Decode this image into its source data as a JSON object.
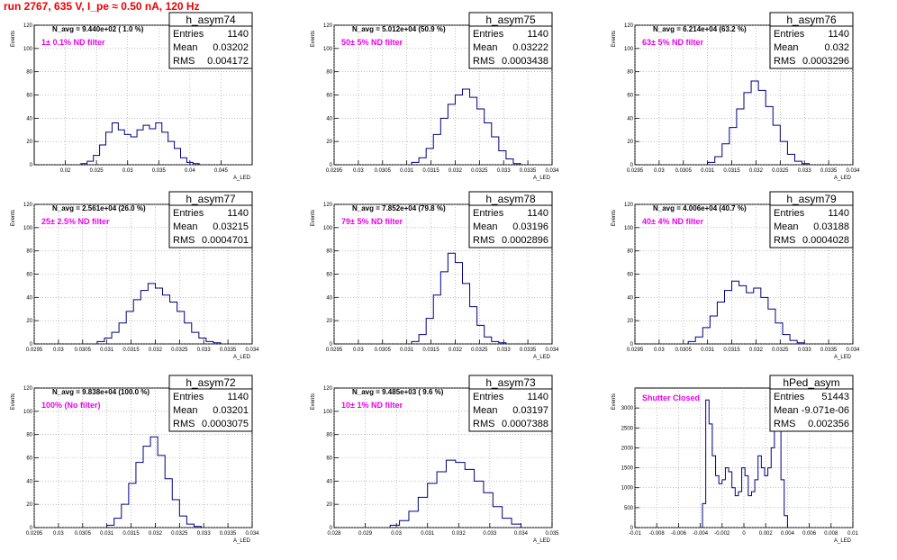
{
  "header": "run 2767,   635 V, I_pe ≈ 0.50 nA, 120 Hz",
  "ylabel": "Events",
  "xlabel": "A_LED",
  "colors": {
    "header": "#ee0000",
    "filter_text": "#ee00ee",
    "histogram_line": "#000080"
  },
  "chart_data": [
    {
      "type": "bar",
      "name": "h_asym74",
      "navg": "N_avg = 9.440e+02 ( 1.0 %)",
      "filter": "1± 0.1% ND filter",
      "stats": {
        "entries": "1140",
        "mean": "0.03202",
        "rms": "0.004172"
      },
      "xlim": [
        0.015,
        0.05
      ],
      "ylim": [
        0,
        120
      ],
      "xticks": [
        "0.02",
        "0.025",
        "0.03",
        "0.035",
        "0.04",
        "0.045"
      ],
      "xtick_values": [
        0.02,
        0.025,
        0.03,
        0.035,
        0.04,
        0.045
      ],
      "yticks": [
        "0",
        "20",
        "40",
        "60",
        "80",
        "100",
        "120"
      ],
      "yticks_values": [
        0,
        20,
        40,
        60,
        80,
        100,
        120
      ],
      "bin_edges": [
        0.0225,
        0.0235,
        0.0245,
        0.0255,
        0.0265,
        0.0275,
        0.0285,
        0.0295,
        0.0305,
        0.0315,
        0.0325,
        0.0335,
        0.0345,
        0.0355,
        0.0365,
        0.0375,
        0.0385,
        0.0395,
        0.0405,
        0.0415
      ],
      "values": [
        1,
        3,
        8,
        17,
        28,
        36,
        30,
        26,
        24,
        30,
        34,
        31,
        36,
        28,
        20,
        14,
        6,
        2,
        1
      ]
    },
    {
      "type": "bar",
      "name": "h_asym75",
      "navg": "N_avg = 5.012e+04 (50.9 %)",
      "filter": "50± 5% ND filter",
      "stats": {
        "entries": "1140",
        "mean": "0.03222",
        "rms": "0.0003438"
      },
      "xlim": [
        0.0295,
        0.034
      ],
      "ylim": [
        0,
        120
      ],
      "xticks": [
        "0.0295",
        "0.03",
        "0.0305",
        "0.031",
        "0.0315",
        "0.032",
        "0.0325",
        "0.033",
        "0.0335",
        "0.034"
      ],
      "xtick_values": [
        0.0295,
        0.03,
        0.0305,
        0.031,
        0.0315,
        0.032,
        0.0325,
        0.033,
        0.0335,
        0.034
      ],
      "yticks": [
        "0",
        "20",
        "40",
        "60",
        "80",
        "100",
        "120"
      ],
      "yticks_values": [
        0,
        20,
        40,
        60,
        80,
        100,
        120
      ],
      "bin_edges": [
        0.0311,
        0.03125,
        0.0314,
        0.03155,
        0.0317,
        0.03185,
        0.032,
        0.03215,
        0.0323,
        0.03245,
        0.0326,
        0.03275,
        0.0329,
        0.03305,
        0.0332,
        0.03335
      ],
      "values": [
        2,
        6,
        14,
        26,
        40,
        52,
        60,
        65,
        58,
        48,
        36,
        24,
        12,
        5,
        1
      ]
    },
    {
      "type": "bar",
      "name": "h_asym76",
      "navg": "N_avg = 6.214e+04 (63.2 %)",
      "filter": "63± 5% ND filter",
      "stats": {
        "entries": "1140",
        "mean": "0.032",
        "rms": "0.0003296"
      },
      "xlim": [
        0.0295,
        0.034
      ],
      "ylim": [
        0,
        120
      ],
      "xticks": [
        "0.0295",
        "0.03",
        "0.0305",
        "0.031",
        "0.0315",
        "0.032",
        "0.0325",
        "0.033",
        "0.0335",
        "0.034"
      ],
      "xtick_values": [
        0.0295,
        0.03,
        0.0305,
        0.031,
        0.0315,
        0.032,
        0.0325,
        0.033,
        0.0335,
        0.034
      ],
      "yticks": [
        "0",
        "20",
        "40",
        "60",
        "80",
        "100",
        "120"
      ],
      "yticks_values": [
        0,
        20,
        40,
        60,
        80,
        100,
        120
      ],
      "bin_edges": [
        0.031,
        0.03115,
        0.0313,
        0.03145,
        0.0316,
        0.03175,
        0.0319,
        0.03205,
        0.0322,
        0.03235,
        0.0325,
        0.03265,
        0.0328,
        0.03295,
        0.0331
      ],
      "values": [
        2,
        7,
        18,
        32,
        48,
        62,
        72,
        64,
        50,
        34,
        20,
        9,
        3,
        1
      ]
    },
    {
      "type": "bar",
      "name": "h_asym77",
      "navg": "N_avg = 2.561e+04 (26.0 %)",
      "filter": "25± 2.5% ND filter",
      "stats": {
        "entries": "1140",
        "mean": "0.03215",
        "rms": "0.0004701"
      },
      "xlim": [
        0.0295,
        0.034
      ],
      "ylim": [
        0,
        120
      ],
      "xticks": [
        "0.0295",
        "0.03",
        "0.0305",
        "0.031",
        "0.0315",
        "0.032",
        "0.0325",
        "0.033",
        "0.0335",
        "0.034"
      ],
      "xtick_values": [
        0.0295,
        0.03,
        0.0305,
        0.031,
        0.0315,
        0.032,
        0.0325,
        0.033,
        0.0335,
        0.034
      ],
      "yticks": [
        "0",
        "20",
        "40",
        "60",
        "80",
        "100",
        "120"
      ],
      "yticks_values": [
        0,
        20,
        40,
        60,
        80,
        100,
        120
      ],
      "bin_edges": [
        0.0308,
        0.03095,
        0.0311,
        0.03125,
        0.0314,
        0.03155,
        0.0317,
        0.03185,
        0.032,
        0.03215,
        0.0323,
        0.03245,
        0.0326,
        0.03275,
        0.0329,
        0.03305,
        0.0332,
        0.03335
      ],
      "values": [
        2,
        5,
        10,
        18,
        28,
        38,
        46,
        52,
        48,
        42,
        36,
        28,
        18,
        10,
        5,
        2,
        1
      ]
    },
    {
      "type": "bar",
      "name": "h_asym78",
      "navg": "N_avg = 7.852e+04 (79.8 %)",
      "filter": "79± 5% ND filter",
      "stats": {
        "entries": "1140",
        "mean": "0.03196",
        "rms": "0.0002896"
      },
      "xlim": [
        0.0295,
        0.034
      ],
      "ylim": [
        0,
        120
      ],
      "xticks": [
        "0.0295",
        "0.03",
        "0.0305",
        "0.031",
        "0.0315",
        "0.032",
        "0.0325",
        "0.033",
        "0.0335",
        "0.034"
      ],
      "xtick_values": [
        0.0295,
        0.03,
        0.0305,
        0.031,
        0.0315,
        0.032,
        0.0325,
        0.033,
        0.0335,
        0.034
      ],
      "yticks": [
        "0",
        "20",
        "40",
        "60",
        "80",
        "100",
        "120"
      ],
      "yticks_values": [
        0,
        20,
        40,
        60,
        80,
        100,
        120
      ],
      "bin_edges": [
        0.0311,
        0.03125,
        0.0314,
        0.03155,
        0.0317,
        0.03185,
        0.032,
        0.03215,
        0.0323,
        0.03245,
        0.0326,
        0.03275,
        0.0329,
        0.03305
      ],
      "values": [
        2,
        8,
        22,
        42,
        62,
        78,
        70,
        52,
        32,
        16,
        6,
        2,
        1
      ]
    },
    {
      "type": "bar",
      "name": "h_asym79",
      "navg": "N_avg = 4.006e+04 (40.7 %)",
      "filter": "40± 4% ND filter",
      "stats": {
        "entries": "1140",
        "mean": "0.03188",
        "rms": "0.0004028"
      },
      "xlim": [
        0.0295,
        0.034
      ],
      "ylim": [
        0,
        120
      ],
      "xticks": [
        "0.0295",
        "0.03",
        "0.0305",
        "0.031",
        "0.0315",
        "0.032",
        "0.0325",
        "0.033",
        "0.0335",
        "0.034"
      ],
      "xtick_values": [
        0.0295,
        0.03,
        0.0305,
        0.031,
        0.0315,
        0.032,
        0.0325,
        0.033,
        0.0335,
        0.034
      ],
      "yticks": [
        "0",
        "20",
        "40",
        "60",
        "80",
        "100",
        "120"
      ],
      "yticks_values": [
        0,
        20,
        40,
        60,
        80,
        100,
        120
      ],
      "bin_edges": [
        0.0306,
        0.03075,
        0.0309,
        0.03105,
        0.0312,
        0.03135,
        0.0315,
        0.03165,
        0.0318,
        0.03195,
        0.0321,
        0.03225,
        0.0324,
        0.03255,
        0.0327,
        0.03285,
        0.033
      ],
      "values": [
        2,
        6,
        14,
        24,
        36,
        46,
        54,
        50,
        44,
        48,
        40,
        30,
        18,
        8,
        3,
        1
      ]
    },
    {
      "type": "bar",
      "name": "h_asym72",
      "navg": "N_avg = 9.838e+04 (100.0 %)",
      "filter": "100% (No filter)",
      "stats": {
        "entries": "1140",
        "mean": "0.03201",
        "rms": "0.0003075"
      },
      "xlim": [
        0.0295,
        0.034
      ],
      "ylim": [
        0,
        120
      ],
      "xticks": [
        "0.0295",
        "0.03",
        "0.0305",
        "0.031",
        "0.0315",
        "0.032",
        "0.0325",
        "0.033",
        "0.0335",
        "0.034"
      ],
      "xtick_values": [
        0.0295,
        0.03,
        0.0305,
        0.031,
        0.0315,
        0.032,
        0.0325,
        0.033,
        0.0335,
        0.034
      ],
      "yticks": [
        "0",
        "20",
        "40",
        "60",
        "80",
        "100",
        "120"
      ],
      "yticks_values": [
        0,
        20,
        40,
        60,
        80,
        100,
        120
      ],
      "bin_edges": [
        0.031,
        0.03115,
        0.0313,
        0.03145,
        0.0316,
        0.03175,
        0.0319,
        0.03205,
        0.0322,
        0.03235,
        0.0325,
        0.03265,
        0.0328,
        0.03295
      ],
      "values": [
        2,
        8,
        20,
        38,
        56,
        70,
        78,
        62,
        42,
        24,
        10,
        3,
        1
      ]
    },
    {
      "type": "bar",
      "name": "h_asym73",
      "navg": "N_avg = 9.485e+03 ( 9.6 %)",
      "filter": "10± 1% ND filter",
      "stats": {
        "entries": "1140",
        "mean": "0.03197",
        "rms": "0.0007388"
      },
      "xlim": [
        0.028,
        0.035
      ],
      "ylim": [
        0,
        120
      ],
      "xticks": [
        "0.028",
        "0.029",
        "0.03",
        "0.031",
        "0.032",
        "0.033",
        "0.034",
        "0.035"
      ],
      "xtick_values": [
        0.028,
        0.029,
        0.03,
        0.031,
        0.032,
        0.033,
        0.034,
        0.035
      ],
      "yticks": [
        "0",
        "20",
        "40",
        "60",
        "80",
        "100",
        "120"
      ],
      "yticks_values": [
        0,
        20,
        40,
        60,
        80,
        100,
        120
      ],
      "bin_edges": [
        0.0298,
        0.0301,
        0.0304,
        0.0307,
        0.031,
        0.0313,
        0.0316,
        0.0319,
        0.0322,
        0.0325,
        0.0328,
        0.0331,
        0.0334,
        0.0337,
        0.034
      ],
      "values": [
        2,
        6,
        14,
        26,
        38,
        48,
        58,
        56,
        50,
        40,
        30,
        18,
        8,
        3
      ]
    },
    {
      "type": "bar",
      "name": "hPed_asym",
      "navg": "",
      "filter": "Shutter Closed",
      "stats": {
        "entries": "51443",
        "mean": "-9.071e-06",
        "rms": "0.002356"
      },
      "xlim": [
        -0.01,
        0.01
      ],
      "ylim": [
        0,
        3500
      ],
      "xticks": [
        "-0.01",
        "-0.008",
        "-0.006",
        "-0.004",
        "-0.002",
        "0",
        "0.002",
        "0.004",
        "0.006",
        "0.008",
        "0.01"
      ],
      "xtick_values": [
        -0.01,
        -0.008,
        -0.006,
        -0.004,
        -0.002,
        0,
        0.002,
        0.004,
        0.006,
        0.008,
        0.01
      ],
      "yticks": [
        "0",
        "500",
        "1000",
        "1500",
        "2000",
        "2500",
        "3000"
      ],
      "yticks_values": [
        0,
        500,
        1000,
        1500,
        2000,
        2500,
        3000
      ],
      "bin_edges": [
        -0.0038,
        -0.0035,
        -0.0032,
        -0.0029,
        -0.0026,
        -0.0023,
        -0.002,
        -0.0017,
        -0.0014,
        -0.0011,
        -0.0008,
        -0.0005,
        -0.0002,
        0.0001,
        0.0004,
        0.0007,
        0.001,
        0.0013,
        0.0016,
        0.0019,
        0.0022,
        0.0025,
        0.0028,
        0.0031,
        0.0034,
        0.0037,
        0.004
      ],
      "values": [
        600,
        3200,
        2600,
        1800,
        1300,
        1100,
        1200,
        1500,
        1400,
        1000,
        800,
        900,
        1500,
        1300,
        800,
        900,
        1200,
        1800,
        1500,
        1300,
        1500,
        2000,
        3300,
        2700,
        1200,
        300
      ]
    }
  ]
}
